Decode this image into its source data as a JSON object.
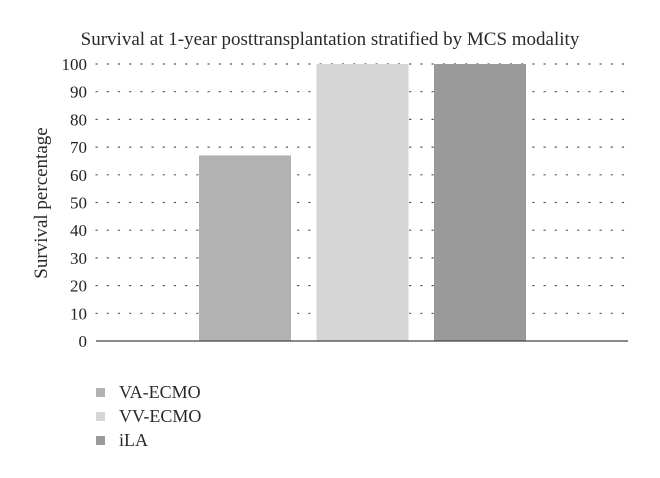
{
  "chart_data": {
    "type": "bar",
    "title": "Survival at 1-year posttransplantation stratified by MCS modality",
    "ylabel": "Survival percentage",
    "xlabel": "",
    "categories": [
      "VA-ECMO",
      "VV-ECMO",
      "iLA"
    ],
    "values": [
      67,
      100,
      100
    ],
    "colors": [
      "#b2b2b2",
      "#d6d6d6",
      "#9a9a9a"
    ],
    "ylim": [
      0,
      100
    ],
    "yticks": [
      0,
      10,
      20,
      30,
      40,
      50,
      60,
      70,
      80,
      90,
      100
    ],
    "grid": "dotted horizontal",
    "legend": {
      "position": "bottom-left",
      "entries": [
        "VA-ECMO",
        "VV-ECMO",
        "iLA"
      ]
    }
  }
}
